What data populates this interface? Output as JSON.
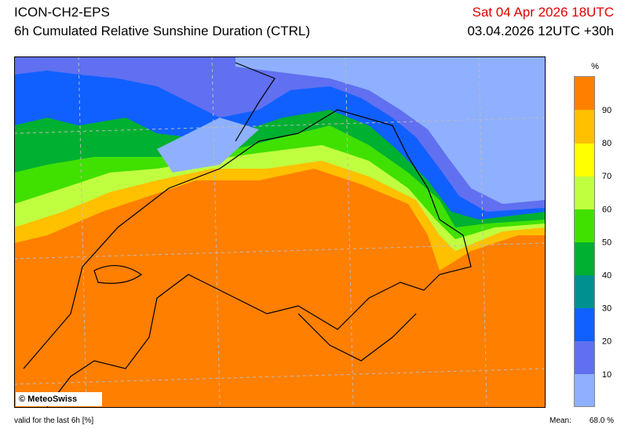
{
  "header": {
    "title": "ICON-CH2-EPS",
    "subtitle": "6h Cumulated Relative Sunshine Duration (CTRL)",
    "valid_time": "Sat 04 Apr 2026 18UTC",
    "run": "03.04.2026 12UTC +30h"
  },
  "map": {
    "credit": "© MeteoSwiss"
  },
  "colorbar": {
    "unit": "%",
    "ticks": [
      90,
      80,
      70,
      60,
      50,
      40,
      30,
      20,
      10
    ]
  },
  "footer": {
    "note": "valid for the last 6h [%]",
    "mean_label": "Mean:",
    "mean": "68.0 %"
  }
}
